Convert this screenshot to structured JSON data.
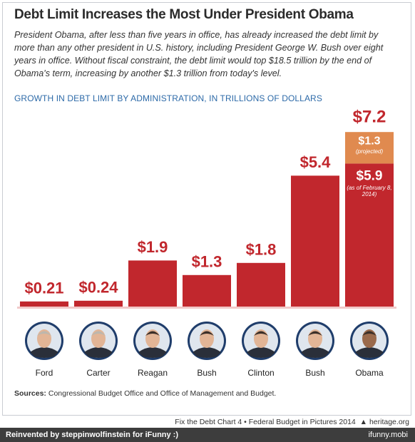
{
  "chart_data": {
    "type": "bar",
    "stacked": true,
    "title": "Debt Limit Increases the Most Under President Obama",
    "subtitle": "President Obama, after less than five years in office, has already increased the debt limit by more than any other president in U.S. history, including President George W. Bush over eight years in office. Without fiscal constraint, the debt limit would top $18.5 trillion by the end of Obama's term, increasing by another $1.3 trillion from today's level.",
    "chart_label": "GROWTH IN DEBT LIMIT BY ADMINISTRATION, IN TRILLIONS OF DOLLARS",
    "categories": [
      "Ford",
      "Carter",
      "Reagan",
      "Bush",
      "Clinton",
      "Bush",
      "Obama"
    ],
    "series": [
      {
        "color": "#c1272d",
        "values": [
          0.21,
          0.24,
          1.9,
          1.3,
          1.8,
          5.4,
          5.9
        ],
        "value_labels": [
          "$0.21",
          "$0.24",
          "$1.9",
          "$1.3",
          "$1.8",
          "$5.4",
          "$5.9"
        ],
        "notes": [
          null,
          null,
          null,
          null,
          null,
          null,
          "(as of February 8, 2014)"
        ]
      },
      {
        "color": "#e08a4f",
        "values": [
          null,
          null,
          null,
          null,
          null,
          null,
          1.3
        ],
        "value_labels": [
          null,
          null,
          null,
          null,
          null,
          null,
          "$1.3"
        ],
        "notes": [
          null,
          null,
          null,
          null,
          null,
          null,
          "(projected)"
        ]
      }
    ],
    "total": {
      "value": 7.2,
      "label": "$7.2"
    },
    "ylim": [
      0,
      8
    ],
    "sources": {
      "label": "Sources:",
      "text": "Congressional Budget Office and Office of Management and Budget."
    },
    "footer": {
      "credit": "Fix the Debt Chart 4 • Federal Budget in Pictures 2014",
      "site": "heritage.org"
    },
    "watermark": {
      "left": "Reinvented by steppinwolfinstein for iFunny :)",
      "right": "ifunny.mobi"
    }
  }
}
